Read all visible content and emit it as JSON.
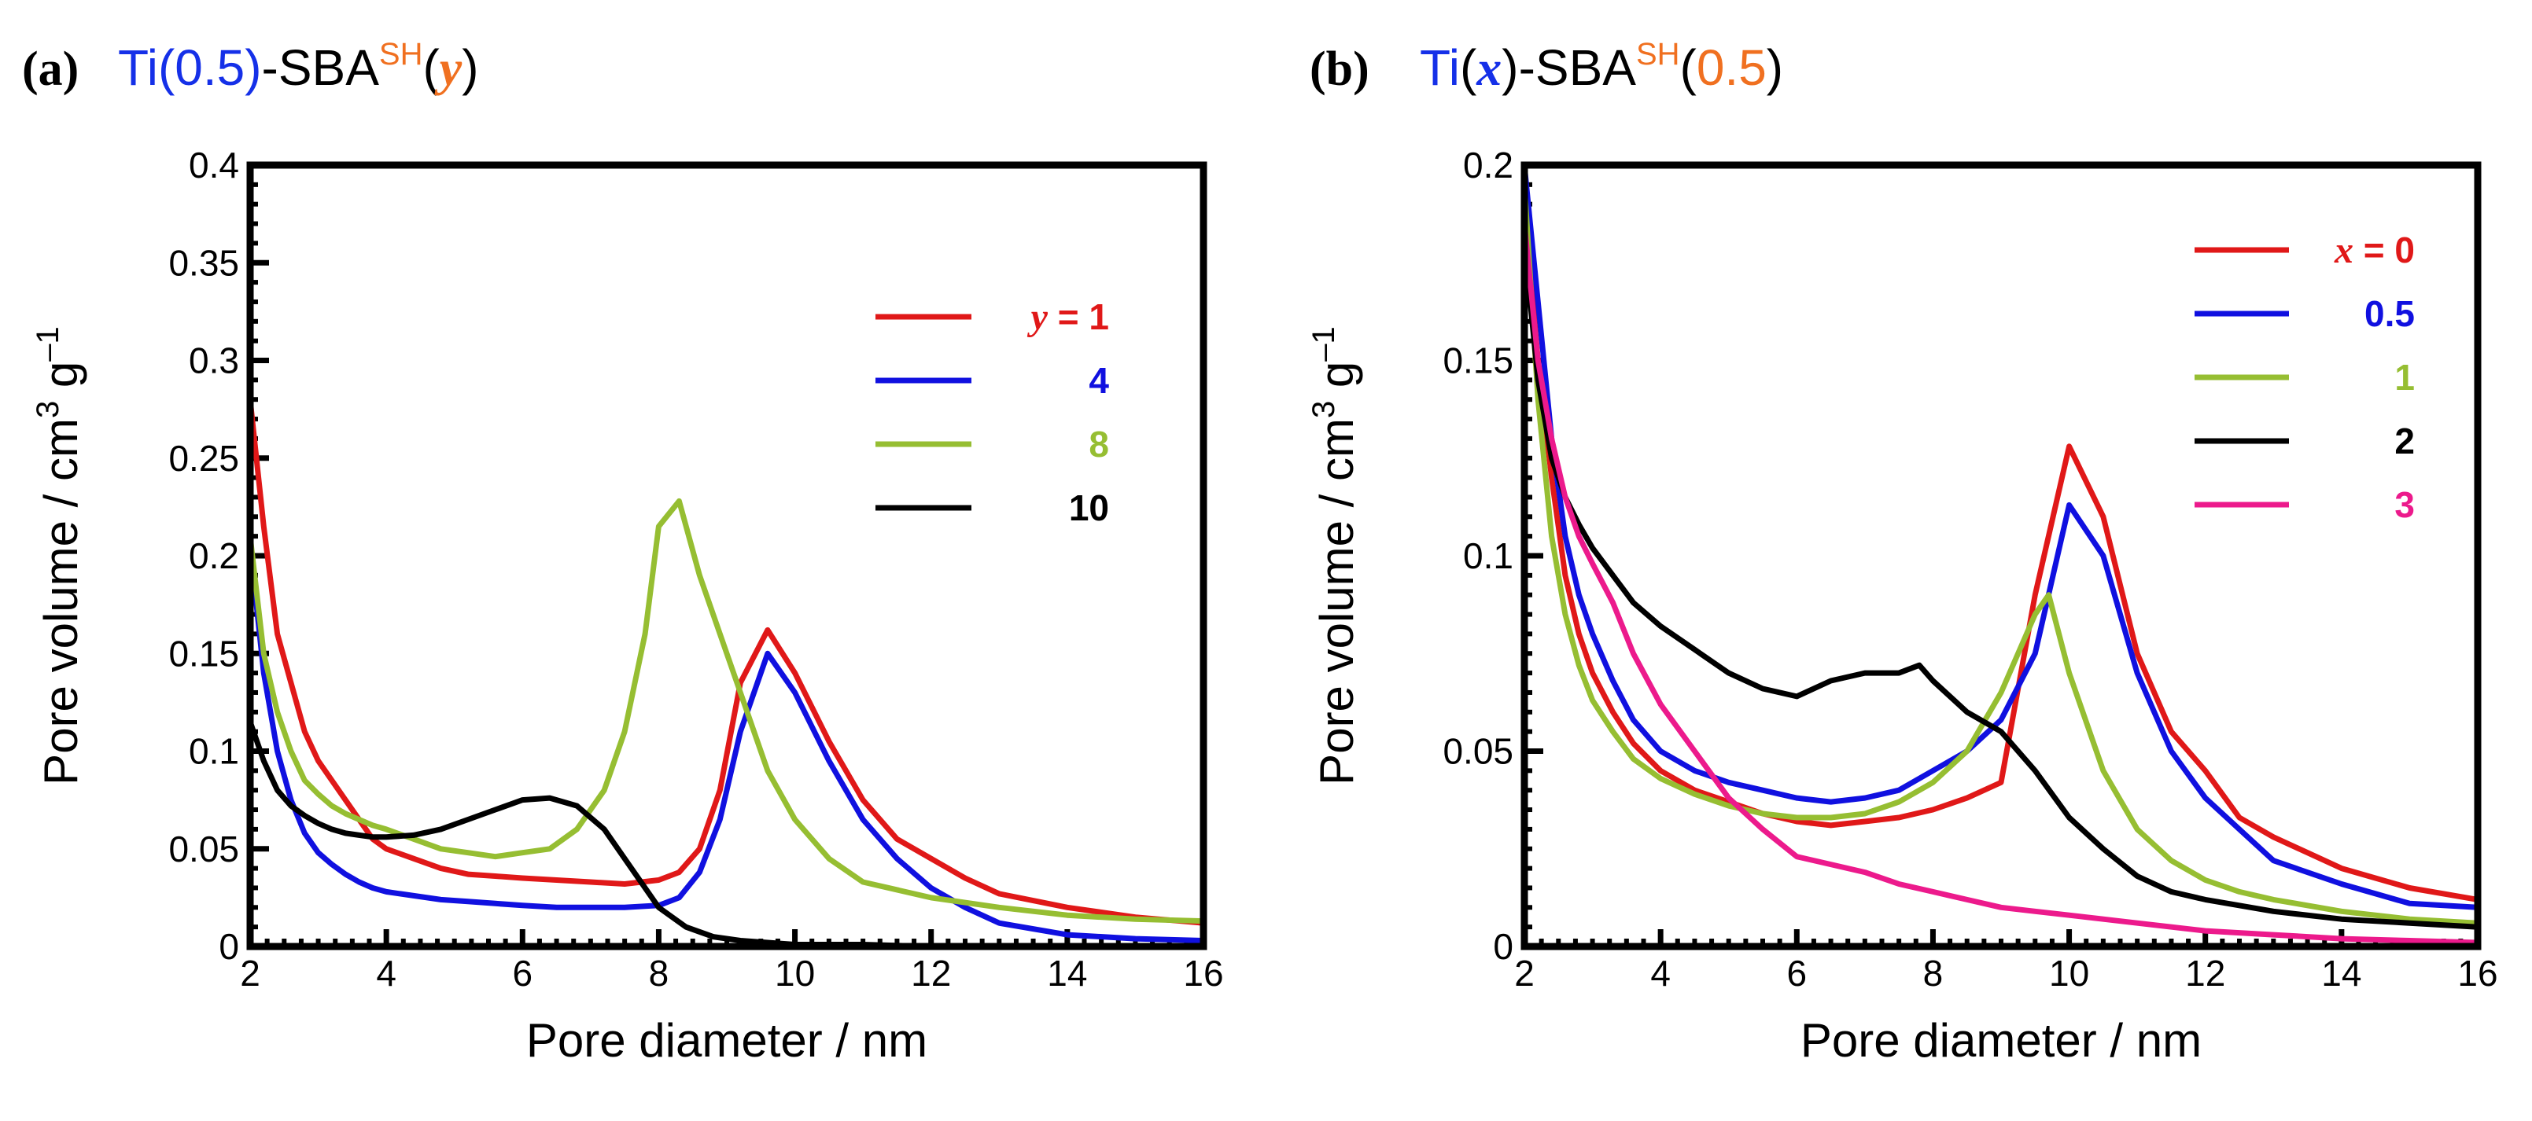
{
  "colors": {
    "red": "#e01818",
    "blue": "#1010e0",
    "green": "#96be32",
    "black": "#000000",
    "magenta": "#ec1a8c",
    "title_blue": "#1530e8",
    "title_orange": "#f07020"
  },
  "chart_data": [
    {
      "type": "line",
      "panel": "(a)",
      "title": {
        "prefix": "Ti",
        "paren_open": "(",
        "ti_value": "0.5",
        "paren_close": ")",
        "middle": "-SBA",
        "superscript": "SH",
        "open2": "(",
        "variable": "y",
        "close2": ")"
      },
      "xlabel": "Pore diameter / nm",
      "ylabel": {
        "main": "Pore volume / cm",
        "sup1": "3",
        "mid": " g",
        "sup2": "–1"
      },
      "xlim": [
        2,
        16
      ],
      "ylim": [
        0,
        0.4
      ],
      "xticks": [
        2,
        4,
        6,
        8,
        10,
        12,
        14,
        16
      ],
      "xtick_labels": [
        "2",
        "4",
        "6",
        "8",
        "10",
        "12",
        "14",
        "16"
      ],
      "yticks": [
        0,
        0.05,
        0.1,
        0.15,
        0.2,
        0.25,
        0.3,
        0.35,
        0.4
      ],
      "ytick_labels": [
        "0",
        "0.05",
        "0.1",
        "0.15",
        "0.2",
        "0.25",
        "0.3",
        "0.35",
        "0.4"
      ],
      "legend_var": "y",
      "legend_eq": " = ",
      "series": [
        {
          "name": "1",
          "color_key": "red",
          "x": [
            2.0,
            2.2,
            2.4,
            2.6,
            2.8,
            3.0,
            3.2,
            3.4,
            3.6,
            3.8,
            4.0,
            4.4,
            4.8,
            5.2,
            5.6,
            6.0,
            6.5,
            7.0,
            7.5,
            8.0,
            8.3,
            8.6,
            8.9,
            9.2,
            9.6,
            10.0,
            10.5,
            11.0,
            11.5,
            12.0,
            12.5,
            13.0,
            14.0,
            15.0,
            16.0
          ],
          "y": [
            0.28,
            0.215,
            0.16,
            0.135,
            0.11,
            0.095,
            0.085,
            0.075,
            0.065,
            0.055,
            0.05,
            0.045,
            0.04,
            0.037,
            0.036,
            0.035,
            0.034,
            0.033,
            0.032,
            0.034,
            0.038,
            0.05,
            0.08,
            0.135,
            0.162,
            0.14,
            0.105,
            0.075,
            0.055,
            0.045,
            0.035,
            0.027,
            0.02,
            0.015,
            0.012
          ]
        },
        {
          "name": "4",
          "color_key": "blue",
          "x": [
            2.0,
            2.2,
            2.4,
            2.6,
            2.8,
            3.0,
            3.2,
            3.4,
            3.6,
            3.8,
            4.0,
            4.4,
            4.8,
            5.2,
            5.6,
            6.0,
            6.5,
            7.0,
            7.5,
            8.0,
            8.3,
            8.6,
            8.9,
            9.2,
            9.6,
            10.0,
            10.5,
            11.0,
            11.5,
            12.0,
            12.5,
            13.0,
            14.0,
            15.0,
            16.0
          ],
          "y": [
            0.205,
            0.14,
            0.1,
            0.075,
            0.058,
            0.048,
            0.042,
            0.037,
            0.033,
            0.03,
            0.028,
            0.026,
            0.024,
            0.023,
            0.022,
            0.021,
            0.02,
            0.02,
            0.02,
            0.021,
            0.025,
            0.038,
            0.065,
            0.11,
            0.15,
            0.13,
            0.095,
            0.065,
            0.045,
            0.03,
            0.02,
            0.012,
            0.006,
            0.004,
            0.003
          ]
        },
        {
          "name": "8",
          "color_key": "green",
          "x": [
            2.0,
            2.2,
            2.4,
            2.6,
            2.8,
            3.0,
            3.2,
            3.4,
            3.6,
            3.8,
            4.0,
            4.4,
            4.8,
            5.2,
            5.6,
            6.0,
            6.4,
            6.8,
            7.2,
            7.5,
            7.8,
            8.0,
            8.3,
            8.6,
            8.9,
            9.2,
            9.6,
            10.0,
            10.5,
            11.0,
            12.0,
            13.0,
            14.0,
            15.0,
            16.0
          ],
          "y": [
            0.21,
            0.15,
            0.12,
            0.1,
            0.085,
            0.078,
            0.072,
            0.068,
            0.065,
            0.062,
            0.06,
            0.055,
            0.05,
            0.048,
            0.046,
            0.048,
            0.05,
            0.06,
            0.08,
            0.11,
            0.16,
            0.215,
            0.228,
            0.19,
            0.16,
            0.13,
            0.09,
            0.065,
            0.045,
            0.033,
            0.025,
            0.02,
            0.016,
            0.014,
            0.013
          ]
        },
        {
          "name": "10",
          "color_key": "black",
          "x": [
            2.0,
            2.2,
            2.4,
            2.6,
            2.8,
            3.0,
            3.2,
            3.4,
            3.6,
            3.8,
            4.0,
            4.4,
            4.8,
            5.2,
            5.6,
            6.0,
            6.4,
            6.8,
            7.2,
            7.6,
            8.0,
            8.4,
            8.8,
            9.2,
            9.6,
            10.0,
            10.5,
            11.0,
            12.0,
            13.0,
            14.0,
            15.0,
            16.0
          ],
          "y": [
            0.115,
            0.095,
            0.08,
            0.072,
            0.067,
            0.063,
            0.06,
            0.058,
            0.057,
            0.056,
            0.056,
            0.057,
            0.06,
            0.065,
            0.07,
            0.075,
            0.076,
            0.072,
            0.06,
            0.04,
            0.02,
            0.01,
            0.005,
            0.003,
            0.002,
            0.001,
            0.001,
            0.001,
            0.0,
            0.0,
            0.0,
            0.0,
            0.0
          ]
        }
      ]
    },
    {
      "type": "line",
      "panel": "(b)",
      "title": {
        "prefix": "Ti",
        "paren_open": "(",
        "variable": "x",
        "paren_close": ")",
        "middle": "-SBA",
        "superscript": "SH",
        "open2": "(",
        "value2": "0.5",
        "close2": ")"
      },
      "xlabel": "Pore diameter / nm",
      "ylabel": {
        "main": "Pore volume / cm",
        "sup1": "3",
        "mid": " g",
        "sup2": "–1"
      },
      "xlim": [
        2,
        16
      ],
      "ylim": [
        0,
        0.2
      ],
      "xticks": [
        2,
        4,
        6,
        8,
        10,
        12,
        14,
        16
      ],
      "xtick_labels": [
        "2",
        "4",
        "6",
        "8",
        "10",
        "12",
        "14",
        "16"
      ],
      "yticks": [
        0,
        0.05,
        0.1,
        0.15,
        0.2
      ],
      "ytick_labels": [
        "0",
        "0.05",
        "0.1",
        "0.15",
        "0.2"
      ],
      "legend_var": "x",
      "legend_eq": " = ",
      "series": [
        {
          "name": "0",
          "color_key": "red",
          "x": [
            2.0,
            2.2,
            2.4,
            2.6,
            2.8,
            3.0,
            3.3,
            3.6,
            4.0,
            4.5,
            5.0,
            5.5,
            6.0,
            6.5,
            7.0,
            7.5,
            8.0,
            8.5,
            9.0,
            9.5,
            10.0,
            10.5,
            11.0,
            11.5,
            12.0,
            12.5,
            13.0,
            14.0,
            15.0,
            16.0
          ],
          "y": [
            0.19,
            0.15,
            0.12,
            0.095,
            0.08,
            0.07,
            0.06,
            0.052,
            0.045,
            0.04,
            0.037,
            0.034,
            0.032,
            0.031,
            0.032,
            0.033,
            0.035,
            0.038,
            0.042,
            0.09,
            0.128,
            0.11,
            0.075,
            0.055,
            0.045,
            0.033,
            0.028,
            0.02,
            0.015,
            0.012
          ]
        },
        {
          "name": "0.5",
          "color_key": "blue",
          "x": [
            2.0,
            2.2,
            2.4,
            2.6,
            2.8,
            3.0,
            3.3,
            3.6,
            4.0,
            4.5,
            5.0,
            5.5,
            6.0,
            6.5,
            7.0,
            7.5,
            8.0,
            8.5,
            9.0,
            9.5,
            10.0,
            10.5,
            11.0,
            11.5,
            12.0,
            12.5,
            13.0,
            14.0,
            15.0,
            16.0
          ],
          "y": [
            0.2,
            0.165,
            0.13,
            0.105,
            0.09,
            0.08,
            0.068,
            0.058,
            0.05,
            0.045,
            0.042,
            0.04,
            0.038,
            0.037,
            0.038,
            0.04,
            0.045,
            0.05,
            0.058,
            0.075,
            0.113,
            0.1,
            0.07,
            0.05,
            0.038,
            0.03,
            0.022,
            0.016,
            0.011,
            0.01
          ]
        },
        {
          "name": "1",
          "color_key": "green",
          "x": [
            2.0,
            2.2,
            2.4,
            2.6,
            2.8,
            3.0,
            3.3,
            3.6,
            4.0,
            4.5,
            5.0,
            5.5,
            6.0,
            6.5,
            7.0,
            7.5,
            8.0,
            8.5,
            9.0,
            9.5,
            9.7,
            10.0,
            10.5,
            11.0,
            11.5,
            12.0,
            12.5,
            13.0,
            14.0,
            15.0,
            16.0
          ],
          "y": [
            0.195,
            0.14,
            0.105,
            0.085,
            0.072,
            0.063,
            0.055,
            0.048,
            0.043,
            0.039,
            0.036,
            0.034,
            0.033,
            0.033,
            0.034,
            0.037,
            0.042,
            0.05,
            0.065,
            0.085,
            0.09,
            0.07,
            0.045,
            0.03,
            0.022,
            0.017,
            0.014,
            0.012,
            0.009,
            0.007,
            0.006
          ]
        },
        {
          "name": "2",
          "color_key": "black",
          "x": [
            2.0,
            2.2,
            2.4,
            2.6,
            2.8,
            3.0,
            3.3,
            3.6,
            4.0,
            4.5,
            5.0,
            5.5,
            6.0,
            6.5,
            7.0,
            7.5,
            7.8,
            8.0,
            8.5,
            9.0,
            9.5,
            10.0,
            10.5,
            11.0,
            11.5,
            12.0,
            13.0,
            14.0,
            15.0,
            16.0
          ],
          "y": [
            0.18,
            0.145,
            0.125,
            0.115,
            0.108,
            0.102,
            0.095,
            0.088,
            0.082,
            0.076,
            0.07,
            0.066,
            0.064,
            0.068,
            0.07,
            0.07,
            0.072,
            0.068,
            0.06,
            0.055,
            0.045,
            0.033,
            0.025,
            0.018,
            0.014,
            0.012,
            0.009,
            0.007,
            0.006,
            0.005
          ]
        },
        {
          "name": "3",
          "color_key": "magenta",
          "x": [
            2.0,
            2.2,
            2.4,
            2.6,
            2.8,
            3.0,
            3.3,
            3.6,
            4.0,
            4.5,
            5.0,
            5.5,
            6.0,
            6.5,
            7.0,
            7.5,
            8.0,
            8.5,
            9.0,
            9.5,
            10.0,
            10.5,
            11.0,
            12.0,
            13.0,
            14.0,
            15.0,
            16.0
          ],
          "y": [
            0.185,
            0.15,
            0.13,
            0.115,
            0.105,
            0.098,
            0.088,
            0.075,
            0.062,
            0.05,
            0.038,
            0.03,
            0.023,
            0.021,
            0.019,
            0.016,
            0.014,
            0.012,
            0.01,
            0.009,
            0.008,
            0.007,
            0.006,
            0.004,
            0.003,
            0.002,
            0.0015,
            0.001
          ]
        }
      ]
    }
  ]
}
